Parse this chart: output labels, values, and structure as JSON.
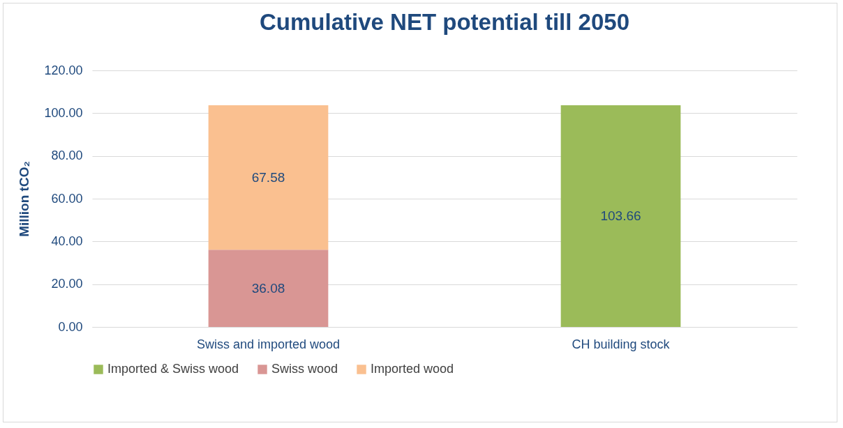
{
  "chart_data": {
    "type": "bar",
    "title": "Cumulative NET potential till 2050",
    "ylabel": "Million tCO₂",
    "categories": [
      "Swiss and imported wood",
      "CH building stock"
    ],
    "stacked": true,
    "series": [
      {
        "name": "Imported & Swiss wood",
        "color": "#9bbb59",
        "values": [
          null,
          103.66
        ]
      },
      {
        "name": "Swiss wood",
        "color": "#d99694",
        "values": [
          36.08,
          null
        ]
      },
      {
        "name": "Imported wood",
        "color": "#fac090",
        "values": [
          67.58,
          null
        ]
      }
    ],
    "ylim": [
      0,
      120
    ],
    "yticks": [
      {
        "value": 0,
        "label": "0.00"
      },
      {
        "value": 20,
        "label": "20.00"
      },
      {
        "value": 40,
        "label": "40.00"
      },
      {
        "value": 60,
        "label": "60.00"
      },
      {
        "value": 80,
        "label": "80.00"
      },
      {
        "value": 100,
        "label": "100.00"
      },
      {
        "value": 120,
        "label": "120.00"
      }
    ],
    "grid": "y",
    "legend": "bottom",
    "data_labels": true
  }
}
